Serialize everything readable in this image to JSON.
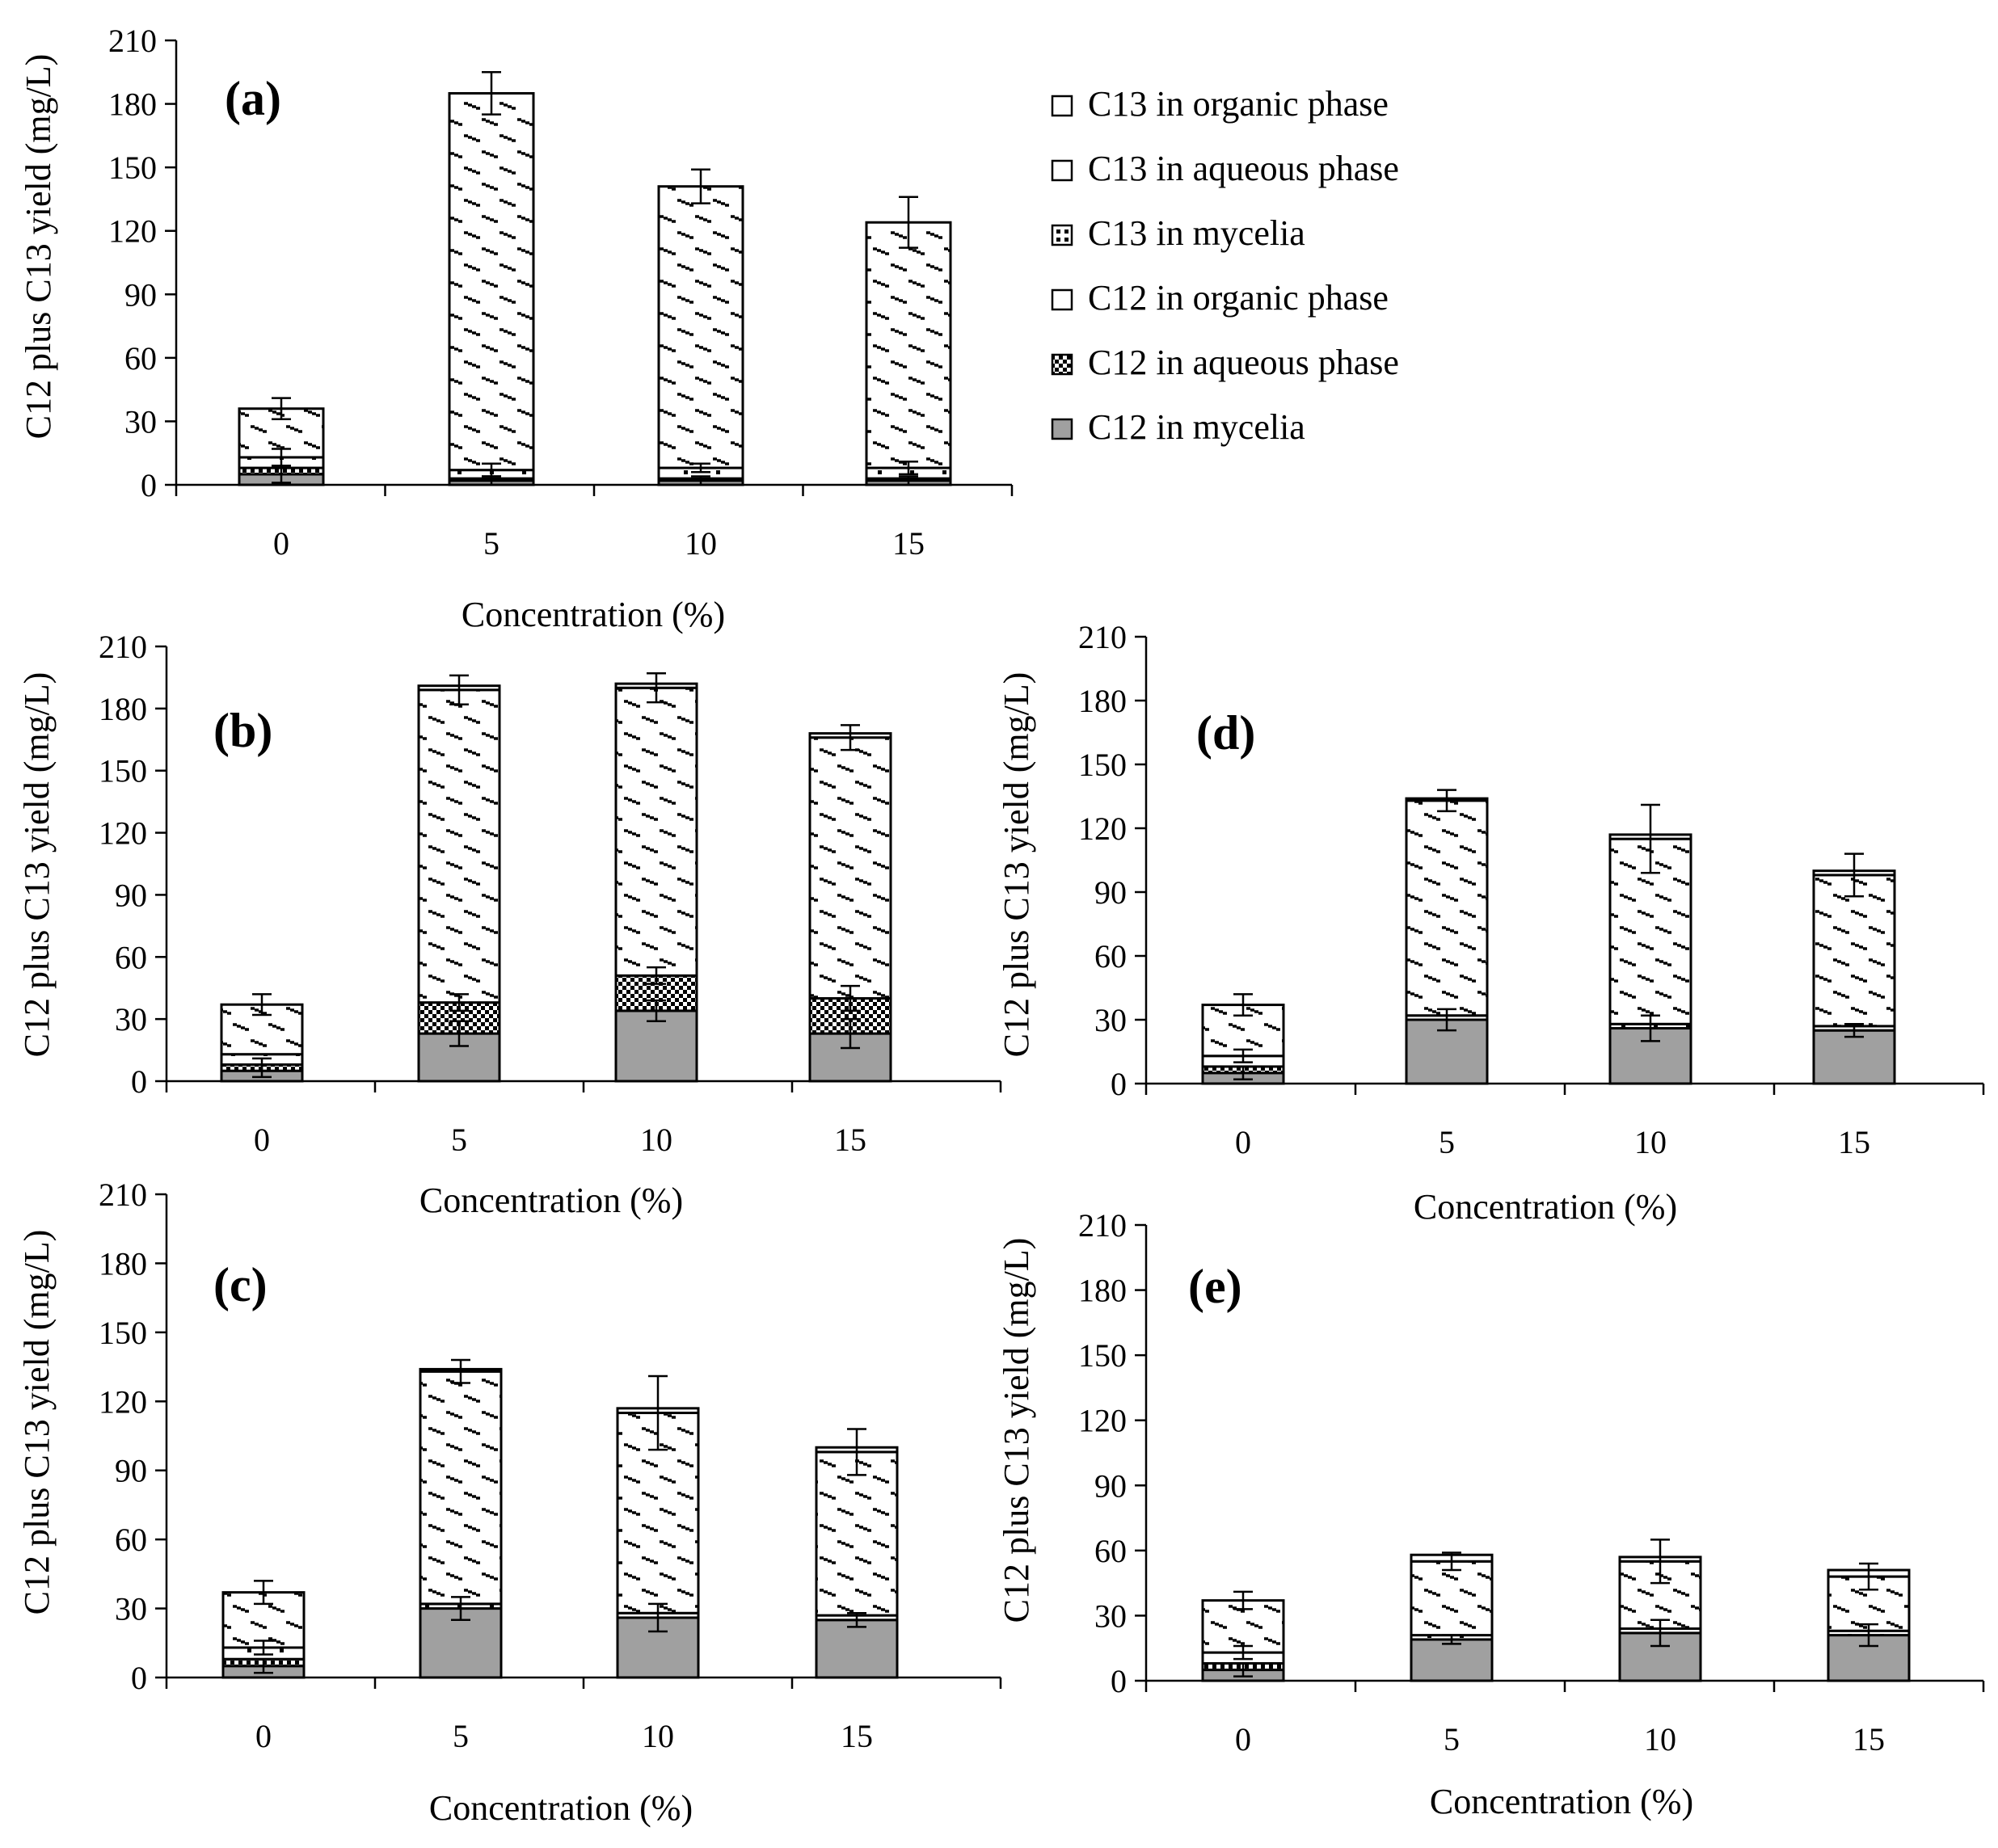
{
  "figure": {
    "alt": "Stacked bar charts of C12 plus C13 yield versus concentration, panels a to e"
  },
  "legend": {
    "items": [
      {
        "label": "C13 in organic phase",
        "pattern": "plain"
      },
      {
        "label": "C13 in aqueous phase",
        "pattern": "plain"
      },
      {
        "label": "C13 in mycelia",
        "pattern": "dots"
      },
      {
        "label": "C12 in organic phase",
        "pattern": "plain"
      },
      {
        "label": "C12 in aqueous phase",
        "pattern": "checker"
      },
      {
        "label": "C12 in mycelia",
        "pattern": "gray"
      }
    ]
  },
  "colors": {
    "gray": "#a0a0a0",
    "line": "#000000",
    "background": "#ffffff"
  },
  "chart_data": [
    {
      "type": "bar",
      "stacked": true,
      "panel_label": "(a)",
      "categories": [
        "0",
        "5",
        "10",
        "15"
      ],
      "xlabel": "Concentration (%)",
      "ylabel": "C12 plus C13 yield (mg/L)",
      "ylim": [
        0,
        210
      ],
      "yticks": [
        0,
        30,
        60,
        90,
        120,
        150,
        180,
        210
      ],
      "series": [
        {
          "name": "C12 in mycelia",
          "values": [
            5,
            2,
            2,
            2
          ]
        },
        {
          "name": "C12 in aqueous phase",
          "values": [
            3,
            1,
            1,
            1
          ]
        },
        {
          "name": "C12 in organic phase",
          "values": [
            0,
            0,
            0,
            0
          ]
        },
        {
          "name": "C13 in mycelia",
          "values": [
            5,
            4,
            5,
            5
          ]
        },
        {
          "name": "C13 in aqueous phase",
          "values": [
            23,
            178,
            133,
            116
          ]
        },
        {
          "name": "C13 in organic phase",
          "values": [
            0,
            0,
            0,
            0
          ]
        }
      ],
      "error_bars": [
        {
          "segment": "C12 in mycelia",
          "errors": [
            4,
            2,
            2,
            2
          ]
        },
        {
          "segment": "C13 in mycelia",
          "errors": [
            4,
            3,
            2,
            3
          ]
        },
        {
          "segment": "C13 in aqueous phase",
          "errors": [
            5,
            10,
            8,
            12
          ]
        }
      ]
    },
    {
      "type": "bar",
      "stacked": true,
      "panel_label": "(b)",
      "categories": [
        "0",
        "5",
        "10",
        "15"
      ],
      "xlabel": "",
      "ylabel": "C12 plus C13 yield (mg/L)",
      "ylim": [
        0,
        210
      ],
      "yticks": [
        0,
        30,
        60,
        90,
        120,
        150,
        180,
        210
      ],
      "series": [
        {
          "name": "C12 in mycelia",
          "values": [
            5,
            23,
            34,
            23
          ]
        },
        {
          "name": "C12 in aqueous phase",
          "values": [
            3,
            15,
            17,
            17
          ]
        },
        {
          "name": "C12 in organic phase",
          "values": [
            0,
            0,
            0,
            0
          ]
        },
        {
          "name": "C13 in mycelia",
          "values": [
            5,
            0,
            0,
            0
          ]
        },
        {
          "name": "C13 in aqueous phase",
          "values": [
            24,
            151,
            139,
            126
          ]
        },
        {
          "name": "C13 in organic phase",
          "values": [
            0,
            2,
            2,
            2
          ]
        }
      ],
      "error_bars": [
        {
          "segment": "C12 in mycelia",
          "errors": [
            3,
            6,
            5,
            7
          ]
        },
        {
          "segment": "C12 in aqueous phase",
          "errors": [
            3,
            4,
            4,
            6
          ]
        },
        {
          "segment": "C13 in aqueous phase",
          "errors": [
            5,
            7,
            7,
            6
          ]
        }
      ]
    },
    {
      "type": "bar",
      "stacked": true,
      "panel_label": "(c)",
      "categories": [
        "0",
        "5",
        "10",
        "15"
      ],
      "xlabel": "Concentration (%)",
      "ylabel": "C12 plus C13 yield (mg/L)",
      "ylim": [
        0,
        210
      ],
      "yticks": [
        0,
        30,
        60,
        90,
        120,
        150,
        180,
        210
      ],
      "series": [
        {
          "name": "C12 in mycelia",
          "values": [
            5,
            30,
            26,
            25
          ]
        },
        {
          "name": "C12 in aqueous phase",
          "values": [
            3,
            0,
            0,
            0
          ]
        },
        {
          "name": "C12 in organic phase",
          "values": [
            0,
            0,
            0,
            0
          ]
        },
        {
          "name": "C13 in mycelia",
          "values": [
            5,
            2,
            2,
            2
          ]
        },
        {
          "name": "C13 in aqueous phase",
          "values": [
            24,
            101,
            87,
            71
          ]
        },
        {
          "name": "C13 in organic phase",
          "values": [
            0,
            1,
            2,
            2
          ]
        }
      ],
      "error_bars": [
        {
          "segment": "C12 in mycelia",
          "errors": [
            3,
            5,
            6,
            3
          ]
        },
        {
          "segment": "C13 in mycelia",
          "errors": [
            3,
            0,
            0,
            0
          ]
        },
        {
          "segment": "C13 in aqueous phase",
          "errors": [
            5,
            5,
            16,
            10
          ]
        }
      ]
    },
    {
      "type": "bar",
      "stacked": true,
      "panel_label": "(d)",
      "categories": [
        "0",
        "5",
        "10",
        "15"
      ],
      "xlabel": "Concentration (%)",
      "ylabel": "C12 plus C13 yield (mg/L)",
      "ylim": [
        0,
        210
      ],
      "yticks": [
        0,
        30,
        60,
        90,
        120,
        150,
        180,
        210
      ],
      "series": [
        {
          "name": "C12 in mycelia",
          "values": [
            5,
            30,
            26,
            25
          ]
        },
        {
          "name": "C12 in aqueous phase",
          "values": [
            3,
            0,
            0,
            0
          ]
        },
        {
          "name": "C12 in organic phase",
          "values": [
            0,
            0,
            0,
            0
          ]
        },
        {
          "name": "C13 in mycelia",
          "values": [
            5,
            2,
            2,
            2
          ]
        },
        {
          "name": "C13 in aqueous phase",
          "values": [
            24,
            101,
            87,
            71
          ]
        },
        {
          "name": "C13 in organic phase",
          "values": [
            0,
            1,
            2,
            2
          ]
        }
      ],
      "error_bars": [
        {
          "segment": "C12 in mycelia",
          "errors": [
            3,
            5,
            6,
            3
          ]
        },
        {
          "segment": "C13 in mycelia",
          "errors": [
            3,
            0,
            0,
            0
          ]
        },
        {
          "segment": "C13 in aqueous phase",
          "errors": [
            5,
            5,
            16,
            10
          ]
        }
      ]
    },
    {
      "type": "bar",
      "stacked": true,
      "panel_label": "(e)",
      "categories": [
        "0",
        "5",
        "10",
        "15"
      ],
      "xlabel": "Concentration (%)",
      "ylabel": "C12 plus C13 yield (mg/L)",
      "ylim": [
        0,
        210
      ],
      "yticks": [
        0,
        30,
        60,
        90,
        120,
        150,
        180,
        210
      ],
      "series": [
        {
          "name": "C12 in mycelia",
          "values": [
            5,
            19,
            22,
            21
          ]
        },
        {
          "name": "C12 in aqueous phase",
          "values": [
            3,
            0,
            0,
            0
          ]
        },
        {
          "name": "C12 in organic phase",
          "values": [
            0,
            0,
            0,
            0
          ]
        },
        {
          "name": "C13 in mycelia",
          "values": [
            5,
            2,
            2,
            2
          ]
        },
        {
          "name": "C13 in aqueous phase",
          "values": [
            24,
            34,
            31,
            25
          ]
        },
        {
          "name": "C13 in organic phase",
          "values": [
            0,
            3,
            2,
            3
          ]
        }
      ],
      "error_bars": [
        {
          "segment": "C12 in mycelia",
          "errors": [
            3,
            2,
            6,
            5
          ]
        },
        {
          "segment": "C13 in mycelia",
          "errors": [
            3,
            0,
            0,
            0
          ]
        },
        {
          "segment": "C13 in aqueous phase",
          "errors": [
            4,
            4,
            10,
            6
          ]
        }
      ]
    }
  ]
}
